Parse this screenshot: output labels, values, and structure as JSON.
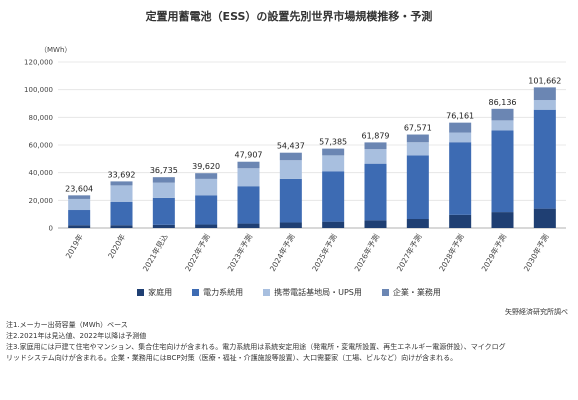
{
  "title": "定置用蓄電池（ESS）の設置先別世界市場規模推移・予測",
  "chart_data": {
    "type": "bar",
    "stacked": true,
    "unit_label": "（MWh）",
    "ylim": [
      0,
      120000
    ],
    "yticks": [
      "0",
      "20,000",
      "40,000",
      "60,000",
      "80,000",
      "100,000",
      "120,000"
    ],
    "ytick_values": [
      0,
      20000,
      40000,
      60000,
      80000,
      100000,
      120000
    ],
    "grid": true,
    "legend_position": "bottom",
    "categories": [
      "2019年",
      "2020年",
      "2021年見込",
      "2022年予測",
      "2023年予測",
      "2024年予測",
      "2025年予測",
      "2026年予測",
      "2027年予測",
      "2028年予測",
      "2029年予測",
      "2030年予測"
    ],
    "totals": [
      23604,
      33692,
      36735,
      39620,
      47907,
      54437,
      57385,
      61879,
      67571,
      76161,
      86136,
      101662
    ],
    "total_labels": [
      "23,604",
      "33,692",
      "36,735",
      "39,620",
      "47,907",
      "54,437",
      "57,385",
      "61,879",
      "67,571",
      "76,161",
      "86,136",
      "101,662"
    ],
    "series": [
      {
        "name": "家庭用",
        "color": "#1f3f73",
        "values": [
          2000,
          2000,
          2300,
          2500,
          3200,
          4000,
          4600,
          5500,
          6500,
          9500,
          11500,
          14000
        ]
      },
      {
        "name": "電力系統用",
        "color": "#3d6bb3",
        "values": [
          11000,
          16800,
          19500,
          21000,
          27000,
          31500,
          36400,
          41000,
          46000,
          52500,
          59000,
          71500
        ]
      },
      {
        "name": "携帯電話基地局・UPS用",
        "color": "#a8bfdf",
        "values": [
          8000,
          12000,
          11000,
          12000,
          13000,
          13500,
          11500,
          10500,
          9500,
          7000,
          7300,
          7000
        ]
      },
      {
        "name": "企業・業務用",
        "color": "#6b86b3",
        "values": [
          2604,
          2892,
          3935,
          4120,
          4707,
          5437,
          4885,
          4879,
          5571,
          7161,
          8336,
          9162
        ]
      }
    ]
  },
  "source": "矢野経済研究所調べ",
  "notes": [
    "注1.メーカー出荷容量（MWh）ベース",
    "注2.2021年は見込値、2022年以降は予測値",
    "注3.家庭用には戸建て住宅やマンション、集合住宅向けが含まれる。電力系統用は系統安定用途（発電所・変電所設置、再生エネルギー電源併設）、マイクログ",
    "リッドシステム向けが含まれる。企業・業務用にはBCP対策（医療・福祉・介護施設等設置）、大口需要家（工場、ビルなど）向けが含まれる。"
  ]
}
